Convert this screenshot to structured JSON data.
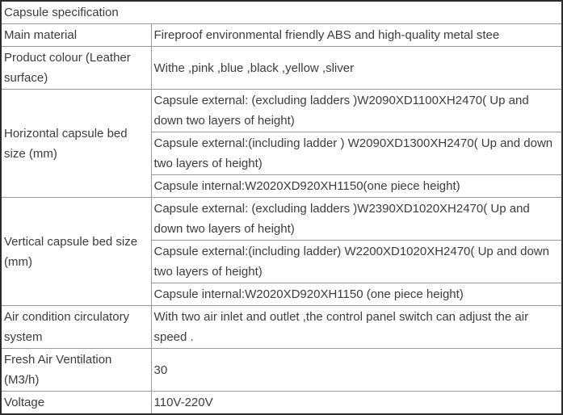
{
  "table": {
    "title": "Capsule specification",
    "rows": [
      {
        "label": "Main material",
        "value": "Fireproof environmental friendly ABS and high-quality metal stee"
      },
      {
        "label": "Product colour (Leather surface)",
        "value": "Withe ,pink ,blue ,black ,yellow ,sliver"
      },
      {
        "label": "Horizontal capsule bed size (mm)",
        "values": [
          "Capsule external: (excluding ladders )W2090XD1100XH2470( Up and down two layers of height)",
          "Capsule external:(including ladder ) W2090XD1300XH2470( Up and down two layers of height)",
          "Capsule internal:W2020XD920XH1150(one piece height)"
        ]
      },
      {
        "label": "Vertical capsule bed size (mm)",
        "values": [
          "Capsule external: (excluding ladders )W2390XD1020XH2470( Up and down two layers of height)",
          "Capsule external:(including ladder) W2200XD1020XH2470( Up and down two layers of height)",
          "Capsule internal:W2020XD920XH1150 (one piece height)"
        ]
      },
      {
        "label": "Air condition circulatory system",
        "value": "With two air inlet and outlet ,the control panel switch can adjust the air speed ."
      },
      {
        "label": "Fresh Air Ventilation (M3/h)",
        "value": "30"
      },
      {
        "label": "Voltage",
        "value": "110V-220V"
      }
    ]
  }
}
